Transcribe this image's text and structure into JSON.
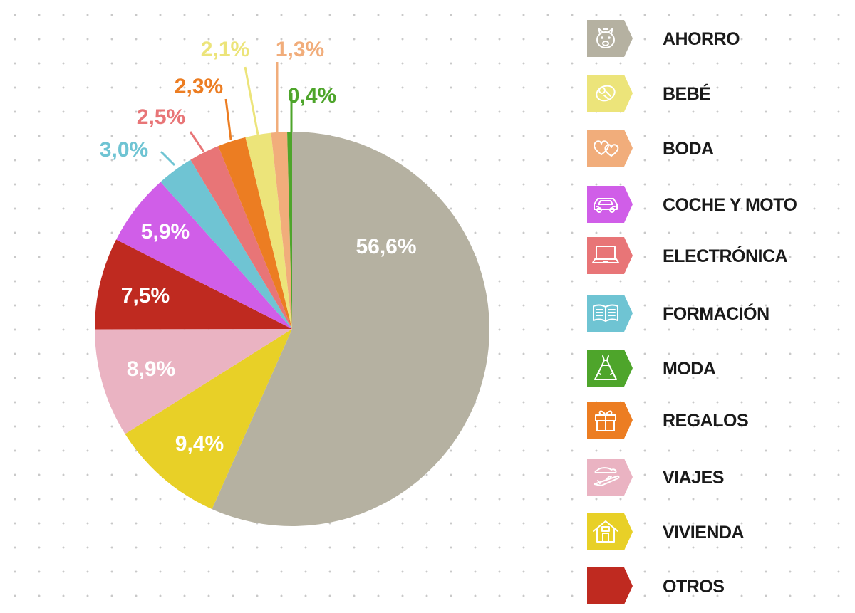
{
  "chart_data": {
    "type": "pie",
    "title": "",
    "start": "top, clockwise",
    "slices": [
      {
        "name": "AHORRO",
        "label": "56,6%",
        "value": 56.6,
        "color": "#b5b1a1",
        "icon": "piggy-bank-icon"
      },
      {
        "name": "VIAJES",
        "label": "8,9%",
        "value": 8.9,
        "color": "#eab3c2",
        "icon": "airplane-icon"
      },
      {
        "name": "VIVIENDA",
        "label": "9,4%",
        "value": 9.4,
        "color": "#e8d027",
        "icon": "house-icon"
      },
      {
        "name": "OTROS",
        "label": "7,5%",
        "value": 7.5,
        "color": "#bf2a20",
        "icon": "none"
      },
      {
        "name": "COCHE Y MOTO",
        "label": "5,9%",
        "value": 5.9,
        "color": "#d05ee8",
        "icon": "car-icon"
      },
      {
        "name": "FORMACIÓN",
        "label": "3,0%",
        "value": 3.0,
        "color": "#6fc4d3",
        "icon": "book-icon"
      },
      {
        "name": "ELECTRÓNICA",
        "label": "2,5%",
        "value": 2.5,
        "color": "#e87577",
        "icon": "laptop-icon"
      },
      {
        "name": "REGALOS",
        "label": "2,3%",
        "value": 2.3,
        "color": "#ec7d22",
        "icon": "gift-icon"
      },
      {
        "name": "BEBÉ",
        "label": "2,1%",
        "value": 2.1,
        "color": "#ece47a",
        "icon": "baby-icon"
      },
      {
        "name": "BODA",
        "label": "1,3%",
        "value": 1.3,
        "color": "#f1ad7b",
        "icon": "hearts-icon"
      },
      {
        "name": "MODA",
        "label": "0,4%",
        "value": 0.4,
        "color": "#4ea52b",
        "icon": "dress-icon"
      }
    ]
  },
  "legend": {
    "items": [
      {
        "label": "AHORRO",
        "color": "#b5b1a1",
        "icon": "piggy-bank-icon"
      },
      {
        "label": "BEBÉ",
        "color": "#ece47a",
        "icon": "baby-icon"
      },
      {
        "label": "BODA",
        "color": "#f1ad7b",
        "icon": "hearts-icon"
      },
      {
        "label": "COCHE Y MOTO",
        "color": "#d05ee8",
        "icon": "car-icon"
      },
      {
        "label": "ELECTRÓNICA",
        "color": "#e87577",
        "icon": "laptop-icon"
      },
      {
        "label": "FORMACIÓN",
        "color": "#6fc4d3",
        "icon": "book-icon"
      },
      {
        "label": "MODA",
        "color": "#4ea52b",
        "icon": "dress-icon"
      },
      {
        "label": "REGALOS",
        "color": "#ec7d22",
        "icon": "gift-icon"
      },
      {
        "label": "VIAJES",
        "color": "#eab3c2",
        "icon": "airplane-icon"
      },
      {
        "label": "VIVIENDA",
        "color": "#e8d027",
        "icon": "house-icon"
      },
      {
        "label": "OTROS",
        "color": "#bf2a20",
        "icon": "none"
      }
    ]
  }
}
